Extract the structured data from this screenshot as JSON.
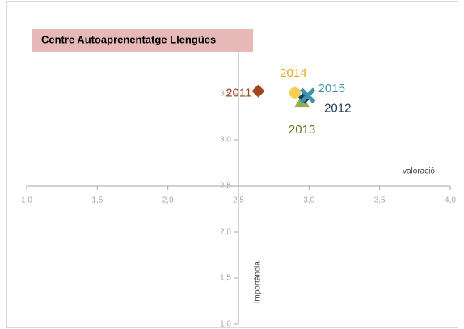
{
  "chart_data": {
    "type": "scatter",
    "title": "Centre Autoaprenentatge Llengües",
    "x_label": "valoració",
    "y_label": "importància",
    "xlim": [
      1,
      4
    ],
    "ylim": [
      1,
      4
    ],
    "xticks": [
      {
        "value": 1,
        "label": "1,0"
      },
      {
        "value": 1.5,
        "label": "1,5"
      },
      {
        "value": 2,
        "label": "2,0"
      },
      {
        "value": 2.5,
        "label": "2,5"
      },
      {
        "value": 3,
        "label": "3,0"
      },
      {
        "value": 3.5,
        "label": "3,5"
      },
      {
        "value": 4,
        "label": "4,0"
      }
    ],
    "yticks": [
      {
        "value": 1,
        "label": "1,0"
      },
      {
        "value": 1.5,
        "label": "1,5"
      },
      {
        "value": 2,
        "label": "2,0"
      },
      {
        "value": 2.5,
        "label": "2,5"
      },
      {
        "value": 3,
        "label": "3,0"
      },
      {
        "value": 3.5,
        "label": "3,5"
      },
      {
        "value": 4,
        "label": "4,0"
      }
    ],
    "series": [
      {
        "name": "2011",
        "color": "#a0461e",
        "label_color": "#a0461e",
        "marker": "diamond",
        "x": [
          2.64
        ],
        "y": [
          3.53
        ]
      },
      {
        "name": "2012",
        "color": "#1f3b5a",
        "label_color": "#1f3b5a",
        "marker": "diamond",
        "x": [
          2.97
        ],
        "y": [
          3.46
        ]
      },
      {
        "name": "2013",
        "color": "#8fb04c",
        "label_color": "#5f7a22",
        "marker": "triangle",
        "x": [
          2.95
        ],
        "y": [
          3.42
        ]
      },
      {
        "name": "2014",
        "color": "#f5cf55",
        "label_color": "#e0aa10",
        "marker": "circle",
        "x": [
          2.9
        ],
        "y": [
          3.51
        ]
      },
      {
        "name": "2015",
        "color": "#3b93ad",
        "label_color": "#3b93ad",
        "marker": "x",
        "x": [
          2.99
        ],
        "y": [
          3.48
        ]
      }
    ]
  }
}
